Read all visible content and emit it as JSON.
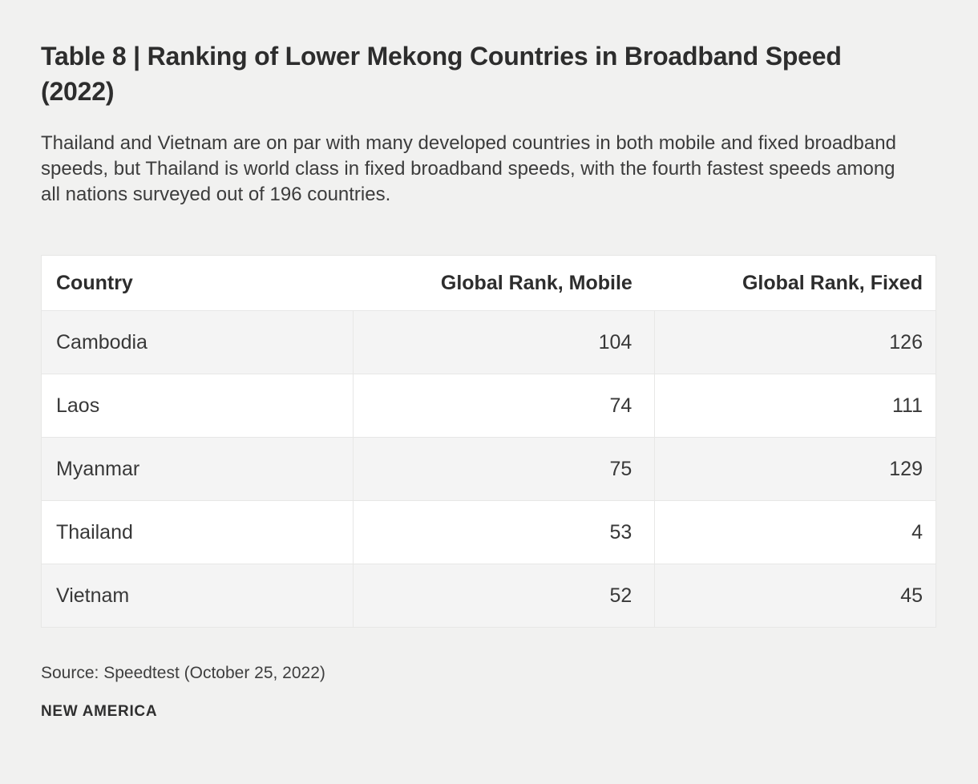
{
  "page": {
    "title": "Table 8 | Ranking of Lower Mekong Countries in Broadband Speed (2022)",
    "subtitle": "Thailand and Vietnam are on par with many developed countries in both mobile and fixed broadband speeds, but Thailand is world class in fixed broadband speeds, with the fourth fastest speeds among all nations surveyed out of 196 countries.",
    "source": "Source: Speedtest (October 25, 2022)",
    "branding": "NEW AMERICA"
  },
  "colors": {
    "page_background": "#f1f1f0",
    "row_stripe": "#f4f4f4",
    "row_plain": "#ffffff",
    "border": "#e7e7e6",
    "text": "#2d2d2d"
  },
  "chart_data": {
    "type": "table",
    "title": "Table 8 | Ranking of Lower Mekong Countries in Broadband Speed (2022)",
    "columns": [
      "Country",
      "Global Rank, Mobile",
      "Global Rank, Fixed"
    ],
    "rows": [
      [
        "Cambodia",
        "104",
        "126"
      ],
      [
        "Laos",
        "74",
        "111"
      ],
      [
        "Myanmar",
        "75",
        "129"
      ],
      [
        "Thailand",
        "53",
        "4"
      ],
      [
        "Vietnam",
        "52",
        "45"
      ]
    ],
    "notes": "Zebra-striped static table; numeric columns right-aligned; source Speedtest (October 25, 2022); published by New America."
  }
}
